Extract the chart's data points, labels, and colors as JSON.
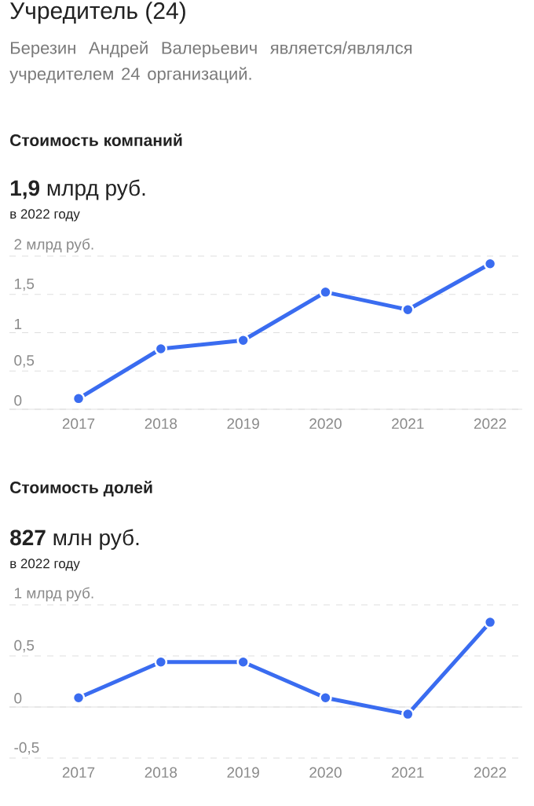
{
  "chart_data": [
    {
      "type": "line",
      "title": "Стоимость компаний",
      "subtitle": "**1,9** млрд руб.",
      "annotations": [
        "Учредитель (24)",
        "Березин Андрей Валерьевич является/являлся учредителем 24 организаций.",
        "в 2022 году"
      ],
      "categories": [
        "2017",
        "2018",
        "2019",
        "2020",
        "2021",
        "2022"
      ],
      "series": [
        {
          "color": "#3a6cf0",
          "values": [
            0.14,
            0.79,
            0.9,
            1.53,
            1.3,
            1.9
          ],
          "colors": [
            "#6450d8",
            "#3a6cf0",
            "#3a6cf0",
            "#3a6cf0",
            "#3a6cf0",
            "#3a6cf0"
          ]
        }
      ],
      "ylim": [
        0,
        2
      ],
      "yticks": [
        0,
        {
          "value": 0.5,
          "label": "0,5"
        },
        1,
        {
          "value": 1.5,
          "label": "1,5"
        },
        {
          "value": 2,
          "label": "2 млрд руб."
        }
      ],
      "grid": "y",
      "marker": "circle",
      "line_style": "solid"
    },
    {
      "type": "line",
      "title": "Стоимость долей",
      "subtitle": "**827** млн руб.",
      "annotations": [
        "в 2022 году"
      ],
      "categories": [
        "2017",
        "2018",
        "2019",
        "2020",
        "2021",
        "2022"
      ],
      "series": [
        {
          "color": "#3a6cf0",
          "values": [
            0.09,
            0.44,
            0.44,
            0.09,
            -0.07,
            0.83
          ],
          "colors": [
            "#6450d8",
            "#3a6cf0",
            "#3a6cf0",
            "#6450d8",
            "#e0263a",
            "#3a6cf0"
          ]
        }
      ],
      "ylim": [
        -0.5,
        1
      ],
      "yticks": [
        {
          "value": -0.5,
          "label": "-0,5"
        },
        0,
        {
          "value": 0.5,
          "label": "0,5"
        },
        {
          "value": 1,
          "label": "1 млрд руб."
        }
      ],
      "grid": "y",
      "marker": "circle",
      "line_style": "solid"
    }
  ]
}
